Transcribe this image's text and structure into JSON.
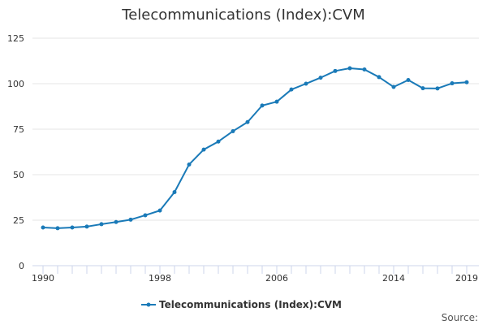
{
  "chart_data": {
    "type": "line",
    "title": "Telecommunications (Index):CVM",
    "xlabel": "",
    "ylabel": "",
    "xlim": [
      1990,
      2019
    ],
    "ylim": [
      0,
      125
    ],
    "x_ticks": [
      1990,
      1998,
      2006,
      2014,
      2019
    ],
    "y_ticks": [
      0,
      25,
      50,
      75,
      100,
      125
    ],
    "grid": true,
    "legend_position": "bottom",
    "x": [
      1990,
      1991,
      1992,
      1993,
      1994,
      1995,
      1996,
      1997,
      1998,
      1999,
      2000,
      2001,
      2002,
      2003,
      2004,
      2005,
      2006,
      2007,
      2008,
      2009,
      2010,
      2011,
      2012,
      2013,
      2014,
      2015,
      2016,
      2017,
      2018,
      2019
    ],
    "series": [
      {
        "name": "Telecommunications (Index):CVM",
        "values": [
          21.0,
          20.6,
          21.0,
          21.5,
          22.8,
          24.0,
          25.3,
          27.7,
          30.3,
          40.4,
          55.6,
          63.8,
          68.2,
          73.9,
          78.9,
          88.0,
          90.1,
          96.8,
          100.0,
          103.3,
          107.0,
          108.5,
          107.8,
          103.6,
          98.2,
          102.0,
          97.5,
          97.4,
          100.2,
          100.8
        ],
        "color": "#1a7ab8"
      }
    ],
    "source_label": "Source:"
  }
}
